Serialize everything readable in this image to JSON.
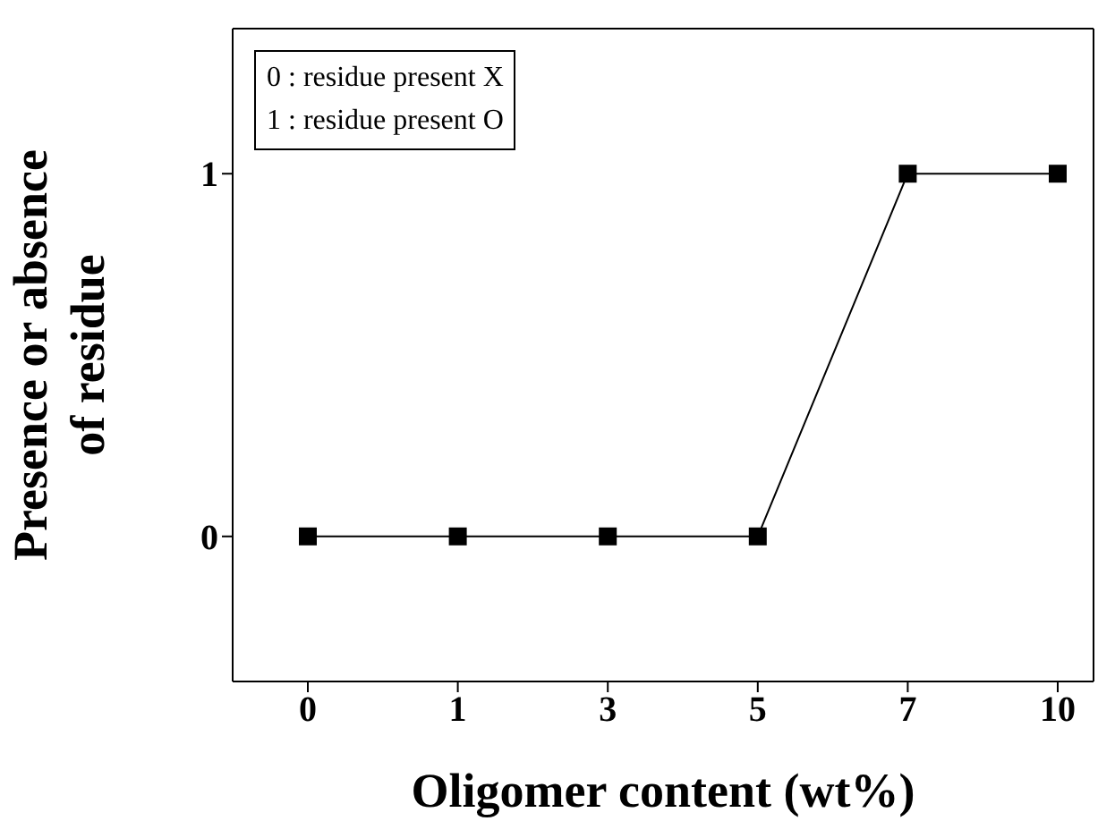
{
  "chart_data": {
    "type": "line",
    "xlabel": "Oligomer content (wt%)",
    "ylabel": "Presence or absence of residue",
    "categories": [
      "0",
      "1",
      "3",
      "5",
      "7",
      "10"
    ],
    "series": [
      {
        "color": "#000000",
        "values": [
          0,
          0,
          0,
          0,
          1,
          1
        ]
      }
    ],
    "ylim": [
      -0.4,
      1.4
    ],
    "yticks": [
      0,
      1
    ],
    "grid": false,
    "legend": false,
    "marker": "square",
    "line_style": "solid",
    "annotations": [
      "0 : residue present X",
      "1 : residue present O"
    ]
  }
}
